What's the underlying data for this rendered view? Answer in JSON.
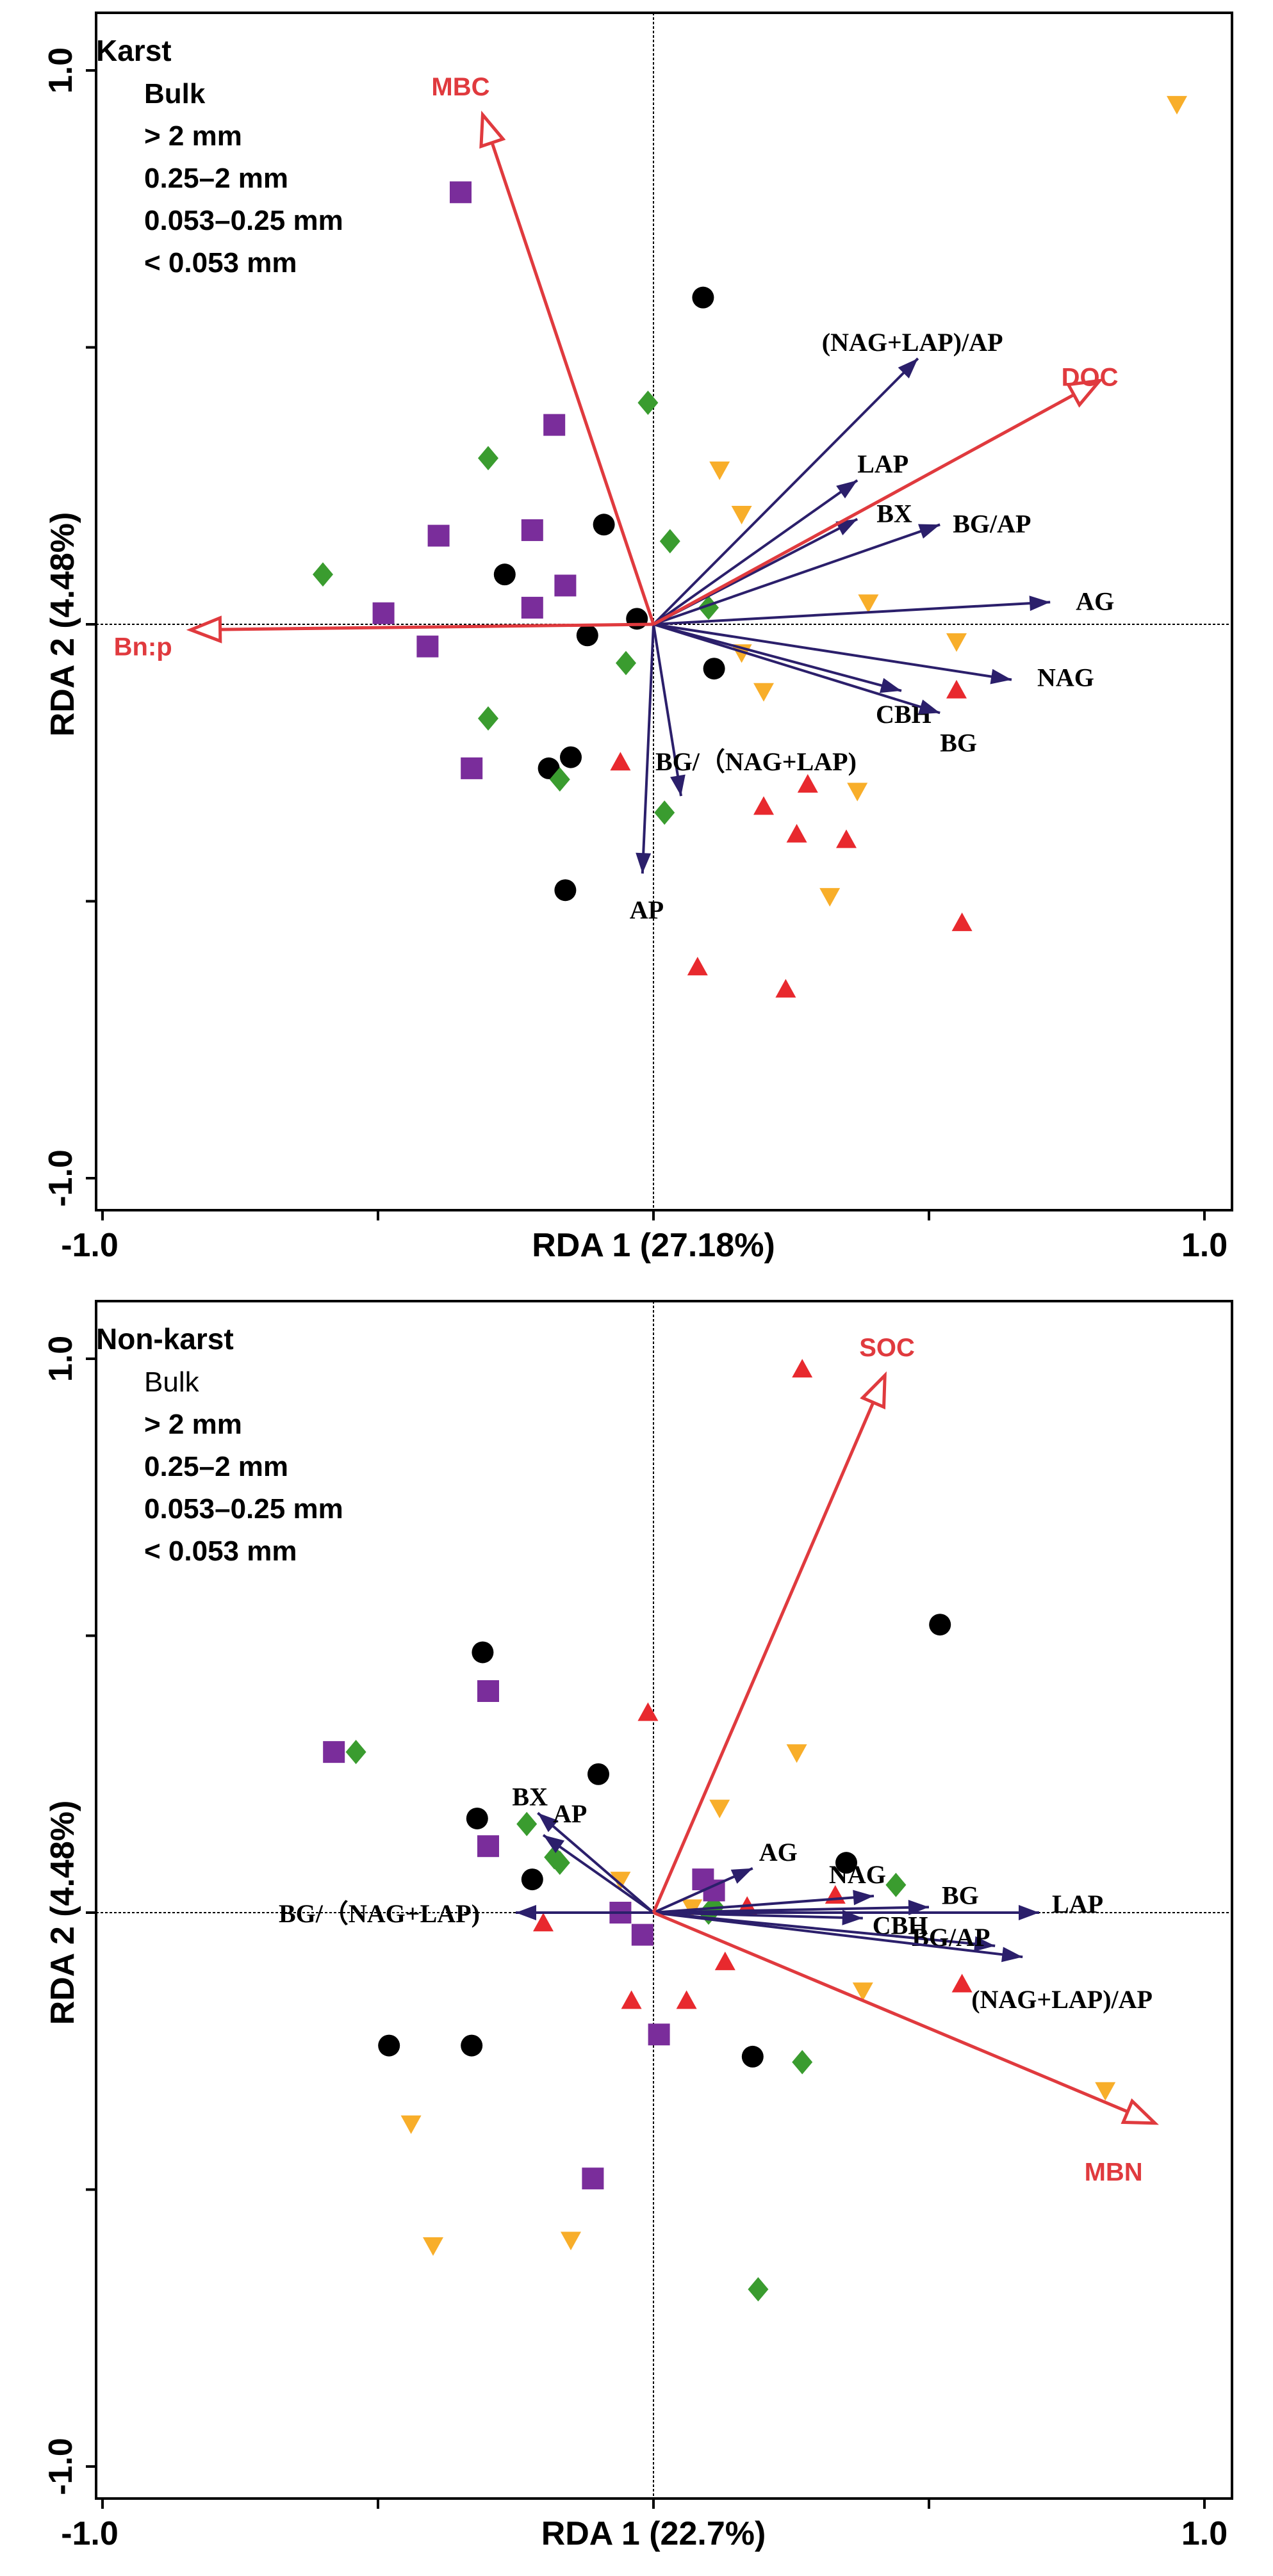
{
  "chart_data": [
    {
      "type": "scatter",
      "title": "Karst",
      "xlabel": "RDA 1 (27.18%)",
      "ylabel": "RDA 2 (4.48%)",
      "xlim": [
        -1.0,
        1.0
      ],
      "ylim": [
        -1.0,
        1.0
      ],
      "x_tick_labels": [
        "-1.0",
        "1.0"
      ],
      "y_tick_labels": [
        "1.0",
        "-1.0"
      ],
      "legend": {
        "title": "Karst",
        "entries": [
          "Bulk",
          "> 2 mm",
          "0.25–2 mm",
          "0.053–0.25 mm",
          "< 0.053 mm"
        ],
        "placement": "top-left"
      },
      "response_arrows": [
        {
          "label": "(NAG+LAP)/AP",
          "x": 0.48,
          "y": 0.48
        },
        {
          "label": "LAP",
          "x": 0.37,
          "y": 0.26
        },
        {
          "label": "BX",
          "x": 0.37,
          "y": 0.19
        },
        {
          "label": "BG/AP",
          "x": 0.52,
          "y": 0.18
        },
        {
          "label": "AG",
          "x": 0.72,
          "y": 0.04
        },
        {
          "label": "NAG",
          "x": 0.65,
          "y": -0.1
        },
        {
          "label": "CBH",
          "x": 0.45,
          "y": -0.12
        },
        {
          "label": "BG",
          "x": 0.52,
          "y": -0.16
        },
        {
          "label": "BG/（NAG+LAP)",
          "x": 0.05,
          "y": -0.31
        },
        {
          "label": "AP",
          "x": -0.02,
          "y": -0.45
        }
      ],
      "environment_arrows": [
        {
          "label": "MBC",
          "x": -0.31,
          "y": 0.92
        },
        {
          "label": "DOC",
          "x": 0.81,
          "y": 0.44
        },
        {
          "label": "Bn:p",
          "x": -0.84,
          "y": -0.01
        }
      ],
      "series": [
        {
          "name": "Bulk",
          "marker": "circle",
          "color": "#000000",
          "points": [
            [
              0.09,
              0.59
            ],
            [
              -0.09,
              0.18
            ],
            [
              -0.27,
              0.09
            ],
            [
              -0.12,
              -0.02
            ],
            [
              -0.03,
              0.01
            ],
            [
              0.11,
              -0.08
            ],
            [
              -0.19,
              -0.26
            ],
            [
              -0.15,
              -0.24
            ],
            [
              -0.16,
              -0.48
            ]
          ]
        },
        {
          "name": "> 2 mm",
          "marker": "triangle-up",
          "color": "#e8292e",
          "points": [
            [
              -0.06,
              -0.25
            ],
            [
              0.2,
              -0.33
            ],
            [
              0.28,
              -0.29
            ],
            [
              0.26,
              -0.38
            ],
            [
              0.35,
              -0.39
            ],
            [
              0.08,
              -0.62
            ],
            [
              0.24,
              -0.66
            ],
            [
              0.56,
              -0.54
            ],
            [
              0.55,
              -0.12
            ]
          ]
        },
        {
          "name": "0.25–2 mm",
          "marker": "triangle-down",
          "color": "#f8ae2a",
          "points": [
            [
              0.12,
              0.28
            ],
            [
              0.16,
              0.2
            ],
            [
              0.39,
              0.04
            ],
            [
              0.16,
              -0.05
            ],
            [
              0.2,
              -0.12
            ],
            [
              0.55,
              -0.03
            ],
            [
              0.37,
              -0.3
            ],
            [
              0.32,
              -0.49
            ],
            [
              0.95,
              0.94
            ]
          ]
        },
        {
          "name": "0.053–0.25 mm",
          "marker": "diamond",
          "color": "#3a9c2f",
          "points": [
            [
              -0.01,
              0.4
            ],
            [
              -0.3,
              0.3
            ],
            [
              0.03,
              0.15
            ],
            [
              0.1,
              0.03
            ],
            [
              -0.6,
              0.09
            ],
            [
              -0.05,
              -0.07
            ],
            [
              -0.3,
              -0.17
            ],
            [
              -0.17,
              -0.28
            ],
            [
              0.02,
              -0.34
            ]
          ]
        },
        {
          "name": "< 0.053 mm",
          "marker": "square",
          "color": "#7a2d9b",
          "points": [
            [
              -0.35,
              0.78
            ],
            [
              -0.18,
              0.36
            ],
            [
              -0.39,
              0.16
            ],
            [
              -0.22,
              0.17
            ],
            [
              -0.16,
              0.07
            ],
            [
              -0.22,
              0.03
            ],
            [
              -0.49,
              0.02
            ],
            [
              -0.41,
              -0.04
            ],
            [
              -0.33,
              -0.26
            ]
          ]
        }
      ]
    },
    {
      "type": "scatter",
      "title": "Non-karst",
      "xlabel": "RDA 1 (22.7%)",
      "ylabel": "RDA 2 (4.48%)",
      "xlim": [
        -1.0,
        1.0
      ],
      "ylim": [
        -1.0,
        1.0
      ],
      "x_tick_labels": [
        "-1.0",
        "1.0"
      ],
      "y_tick_labels": [
        "1.0",
        "-1.0"
      ],
      "legend": {
        "title": "Non-karst",
        "entries": [
          "Bulk",
          "> 2 mm",
          "0.25–2 mm",
          "0.053–0.25 mm",
          "< 0.053 mm"
        ],
        "placement": "top-left"
      },
      "response_arrows": [
        {
          "label": "BX",
          "x": -0.21,
          "y": 0.18
        },
        {
          "label": "AP",
          "x": -0.2,
          "y": 0.14
        },
        {
          "label": "AG",
          "x": 0.18,
          "y": 0.08
        },
        {
          "label": "NAG",
          "x": 0.4,
          "y": 0.03
        },
        {
          "label": "BG",
          "x": 0.5,
          "y": 0.01
        },
        {
          "label": "LAP",
          "x": 0.7,
          "y": 0.0
        },
        {
          "label": "CBH",
          "x": 0.38,
          "y": -0.01
        },
        {
          "label": "BG/AP",
          "x": 0.62,
          "y": -0.06
        },
        {
          "label": "(NAG+LAP)/AP",
          "x": 0.67,
          "y": -0.08
        },
        {
          "label": "BG/（NAG+LAP)",
          "x": -0.25,
          "y": 0.0
        }
      ],
      "environment_arrows": [
        {
          "label": "SOC",
          "x": 0.42,
          "y": 0.97
        },
        {
          "label": "MBN",
          "x": 0.91,
          "y": -0.38
        }
      ],
      "series": [
        {
          "name": "Bulk",
          "marker": "circle",
          "color": "#000000",
          "points": [
            [
              -0.31,
              0.47
            ],
            [
              -0.1,
              0.25
            ],
            [
              -0.32,
              0.17
            ],
            [
              -0.22,
              0.06
            ],
            [
              0.35,
              0.09
            ],
            [
              0.52,
              0.52
            ],
            [
              -0.48,
              -0.24
            ],
            [
              -0.33,
              -0.24
            ],
            [
              0.18,
              -0.26
            ]
          ]
        },
        {
          "name": "> 2 mm",
          "marker": "triangle-up",
          "color": "#e8292e",
          "points": [
            [
              0.27,
              0.98
            ],
            [
              -0.01,
              0.36
            ],
            [
              0.33,
              0.03
            ],
            [
              0.17,
              0.01
            ],
            [
              -0.2,
              -0.02
            ],
            [
              0.13,
              -0.09
            ],
            [
              -0.04,
              -0.16
            ],
            [
              0.06,
              -0.16
            ],
            [
              0.56,
              -0.13
            ]
          ]
        },
        {
          "name": "0.25–2 mm",
          "marker": "triangle-down",
          "color": "#f8ae2a",
          "points": [
            [
              0.26,
              0.29
            ],
            [
              0.12,
              0.19
            ],
            [
              -0.06,
              0.06
            ],
            [
              0.07,
              0.01
            ],
            [
              0.38,
              -0.14
            ],
            [
              0.82,
              -0.32
            ],
            [
              -0.44,
              -0.38
            ],
            [
              -0.4,
              -0.6
            ],
            [
              -0.15,
              -0.59
            ]
          ]
        },
        {
          "name": "0.053–0.25 mm",
          "marker": "diamond",
          "color": "#3a9c2f",
          "points": [
            [
              -0.54,
              0.29
            ],
            [
              -0.23,
              0.16
            ],
            [
              -0.17,
              0.09
            ],
            [
              -0.18,
              0.1
            ],
            [
              0.1,
              0.0
            ],
            [
              0.44,
              0.05
            ],
            [
              0.27,
              -0.27
            ],
            [
              0.19,
              -0.68
            ],
            [
              0.11,
              0.01
            ]
          ]
        },
        {
          "name": "< 0.053 mm",
          "marker": "square",
          "color": "#7a2d9b",
          "points": [
            [
              -0.3,
              0.4
            ],
            [
              -0.58,
              0.29
            ],
            [
              -0.3,
              0.12
            ],
            [
              0.09,
              0.06
            ],
            [
              0.11,
              0.04
            ],
            [
              -0.06,
              0.0
            ],
            [
              -0.02,
              -0.04
            ],
            [
              0.01,
              -0.22
            ],
            [
              -0.11,
              -0.48
            ]
          ]
        }
      ]
    }
  ],
  "colors": {
    "env_arrow": "#e03a3e",
    "response_arrow": "#2b1f6b",
    "axis": "#000000"
  }
}
